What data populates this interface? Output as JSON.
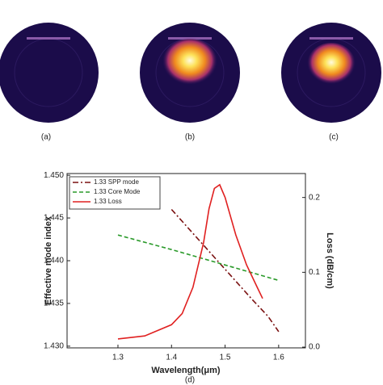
{
  "panels": [
    {
      "label": "(a)"
    },
    {
      "label": "(b)"
    },
    {
      "label": "(c)"
    }
  ],
  "chart_data": {
    "type": "line",
    "panel_label": "(d)",
    "x_label": "Wavelength(μm)",
    "y_label": "Effective mode index",
    "y2_label": "Loss (dB/cm)",
    "xlim": [
      1.205,
      1.65
    ],
    "xticks": [
      1.3,
      1.4,
      1.5,
      1.6
    ],
    "ylim": [
      1.4298,
      1.4502
    ],
    "yticks": [
      {
        "value": 1.43,
        "label": "1.430"
      },
      {
        "value": 1.435,
        "label": "1.435"
      },
      {
        "value": 1.44,
        "label": "1.440"
      },
      {
        "value": 1.445,
        "label": "1.445"
      },
      {
        "value": 1.45,
        "label": "1.450"
      }
    ],
    "y2lim": [
      -0.001,
      0.232
    ],
    "y2ticks": [
      {
        "value": 0,
        "label": "0.0"
      },
      0.1,
      0.2
    ],
    "legend": "upper left",
    "series": [
      {
        "name": "1.33 SPP mode",
        "color": "#7a1010",
        "dash": "7 3 2 3",
        "x": [
          1.4,
          1.45,
          1.5,
          1.55,
          1.58,
          1.6
        ],
        "values": [
          1.446,
          1.4425,
          1.439,
          1.4355,
          1.4335,
          1.4317
        ]
      },
      {
        "name": "1.33 Core Mode",
        "color": "#2a9a2a",
        "dash": "5 3",
        "x": [
          1.3,
          1.4,
          1.5,
          1.6
        ],
        "values": [
          1.443,
          1.4413,
          1.4395,
          1.4377
        ]
      },
      {
        "name": "1.33 Loss",
        "color": "#e02020",
        "axis": "y2",
        "x": [
          1.3,
          1.35,
          1.4,
          1.42,
          1.44,
          1.46,
          1.47,
          1.48,
          1.49,
          1.5,
          1.52,
          1.54,
          1.56,
          1.57
        ],
        "values": [
          0.011,
          0.015,
          0.03,
          0.045,
          0.08,
          0.14,
          0.185,
          0.212,
          0.217,
          0.2,
          0.15,
          0.11,
          0.08,
          0.065
        ]
      }
    ]
  }
}
